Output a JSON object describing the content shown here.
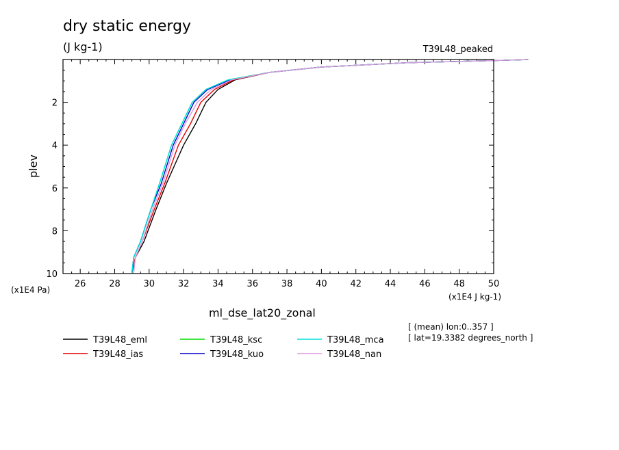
{
  "chart_data": {
    "type": "line",
    "title": "dry static energy",
    "units": "(J kg-1)",
    "experiment": "T39L48_peaked",
    "xlabel": "ml_dse_lat20_zonal",
    "ylabel": "plev",
    "x_units": "(x1E4 J kg-1)",
    "y_units": "(x1E4 Pa)",
    "xlim": [
      25,
      50
    ],
    "ylim": [
      10,
      0
    ],
    "x_ticks": [
      26,
      28,
      30,
      32,
      34,
      36,
      38,
      40,
      42,
      44,
      46,
      48,
      50
    ],
    "y_ticks": [
      2,
      4,
      6,
      8,
      10
    ],
    "x_tick_labels": [
      "26",
      "28",
      "30",
      "32",
      "34",
      "36",
      "38",
      "40",
      "42",
      "44",
      "46",
      "48",
      "50"
    ],
    "y_tick_labels": [
      "2",
      "4",
      "6",
      "8",
      "10"
    ],
    "annotations": [
      "[ (mean) lon:0..357 ]",
      "[ lat=19.3382 degrees_north ]"
    ],
    "legend_position": "bottom",
    "series": [
      {
        "name": "T39L48_eml",
        "color": "#000000",
        "points": [
          [
            29.0,
            10.0
          ],
          [
            29.2,
            9.25
          ],
          [
            29.7,
            8.5
          ],
          [
            30.4,
            7.0
          ],
          [
            31.0,
            5.8
          ],
          [
            32.0,
            4.0
          ],
          [
            32.7,
            3.0
          ],
          [
            33.3,
            2.0
          ],
          [
            34.0,
            1.4
          ],
          [
            35.0,
            0.95
          ],
          [
            37.0,
            0.6
          ],
          [
            40.0,
            0.35
          ],
          [
            45.0,
            0.15
          ],
          [
            50.0,
            0.05
          ],
          [
            52.0,
            0.0
          ]
        ]
      },
      {
        "name": "T39L48_ias",
        "color": "#e00000",
        "points": [
          [
            29.0,
            10.0
          ],
          [
            29.2,
            9.25
          ],
          [
            29.6,
            8.5
          ],
          [
            30.3,
            7.0
          ],
          [
            30.9,
            5.8
          ],
          [
            31.7,
            4.0
          ],
          [
            32.4,
            3.0
          ],
          [
            33.0,
            2.0
          ],
          [
            33.8,
            1.4
          ],
          [
            34.9,
            0.95
          ],
          [
            37.0,
            0.6
          ],
          [
            40.0,
            0.35
          ],
          [
            45.0,
            0.15
          ],
          [
            50.0,
            0.05
          ],
          [
            52.0,
            0.0
          ]
        ]
      },
      {
        "name": "T39L48_ksc",
        "color": "#00dd00",
        "points": [
          [
            29.0,
            10.0
          ],
          [
            29.1,
            9.25
          ],
          [
            29.5,
            8.5
          ],
          [
            30.1,
            7.0
          ],
          [
            30.6,
            5.8
          ],
          [
            31.3,
            4.0
          ],
          [
            31.9,
            3.0
          ],
          [
            32.5,
            2.0
          ],
          [
            33.3,
            1.4
          ],
          [
            34.6,
            0.95
          ],
          [
            37.0,
            0.6
          ],
          [
            40.0,
            0.35
          ],
          [
            45.0,
            0.15
          ],
          [
            50.0,
            0.05
          ],
          [
            52.0,
            0.0
          ]
        ]
      },
      {
        "name": "T39L48_kuo",
        "color": "#0000cc",
        "points": [
          [
            29.0,
            10.0
          ],
          [
            29.1,
            9.25
          ],
          [
            29.5,
            8.5
          ],
          [
            30.1,
            7.0
          ],
          [
            30.7,
            5.8
          ],
          [
            31.4,
            4.0
          ],
          [
            32.0,
            3.0
          ],
          [
            32.6,
            2.0
          ],
          [
            33.4,
            1.4
          ],
          [
            34.7,
            0.95
          ],
          [
            37.0,
            0.6
          ],
          [
            40.0,
            0.35
          ],
          [
            45.0,
            0.15
          ],
          [
            50.0,
            0.05
          ],
          [
            52.0,
            0.0
          ]
        ]
      },
      {
        "name": "T39L48_mca",
        "color": "#00e0e0",
        "points": [
          [
            29.0,
            10.0
          ],
          [
            29.1,
            9.25
          ],
          [
            29.5,
            8.5
          ],
          [
            30.1,
            7.0
          ],
          [
            30.6,
            5.8
          ],
          [
            31.3,
            4.0
          ],
          [
            31.9,
            3.0
          ],
          [
            32.5,
            2.0
          ],
          [
            33.3,
            1.4
          ],
          [
            34.6,
            0.95
          ],
          [
            37.0,
            0.6
          ],
          [
            40.0,
            0.35
          ],
          [
            45.0,
            0.15
          ],
          [
            50.0,
            0.05
          ],
          [
            52.0,
            0.0
          ]
        ]
      },
      {
        "name": "T39L48_nan",
        "color": "#dd99dd",
        "points": [
          [
            29.1,
            10.0
          ],
          [
            29.2,
            9.25
          ],
          [
            29.6,
            8.5
          ],
          [
            30.2,
            7.0
          ],
          [
            30.8,
            5.8
          ],
          [
            31.5,
            4.0
          ],
          [
            32.1,
            3.0
          ],
          [
            32.8,
            2.0
          ],
          [
            33.6,
            1.4
          ],
          [
            34.8,
            0.95
          ],
          [
            37.0,
            0.6
          ],
          [
            40.0,
            0.35
          ],
          [
            45.0,
            0.15
          ],
          [
            50.0,
            0.05
          ],
          [
            52.0,
            0.0
          ]
        ]
      }
    ]
  }
}
